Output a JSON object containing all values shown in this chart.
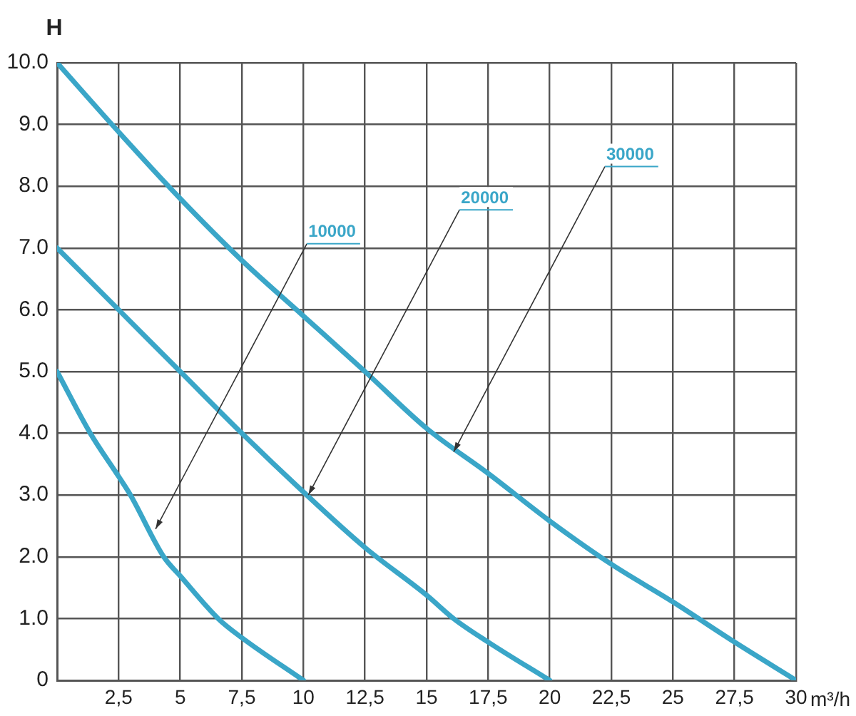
{
  "chart_data": {
    "type": "line",
    "xlabel": "m³/h",
    "ylabel": "H",
    "series": [
      {
        "color": "#3aa6c8",
        "x": [
          0,
          1.35,
          2.5,
          2.98,
          4.33,
          5,
          6.54,
          7.5,
          10
        ],
        "values": [
          5,
          4,
          3.3,
          3,
          2,
          1.69,
          1,
          0.69,
          0
        ]
      },
      {
        "color": "#3aa6c8",
        "x": [
          0,
          2.5,
          5,
          7.5,
          10,
          12.5,
          15,
          16.1,
          17.5,
          20
        ],
        "values": [
          7,
          6,
          5,
          4,
          3.05,
          2.15,
          1.38,
          1,
          0.62,
          0
        ]
      },
      {
        "color": "#3aa6c8",
        "x": [
          0,
          2.5,
          5,
          7.5,
          10,
          12.5,
          15,
          17.5,
          20,
          22.5,
          25,
          27.5,
          30
        ],
        "values": [
          10,
          8.88,
          7.8,
          6.8,
          5.9,
          5,
          4.08,
          3.35,
          2.58,
          1.88,
          1.27,
          0.62,
          0
        ]
      }
    ],
    "xlim": [
      0,
      30
    ],
    "xticks": [
      {
        "value": 0,
        "label": null
      },
      {
        "value": 2.5,
        "label": "2,5"
      },
      5,
      {
        "value": 7.5,
        "label": "7,5"
      },
      10,
      {
        "value": 12.5,
        "label": "12,5"
      },
      15,
      {
        "value": 17.5,
        "label": "17,5"
      },
      20,
      {
        "value": 22.5,
        "label": "22,5"
      },
      25,
      {
        "value": 27.5,
        "label": "27,5"
      },
      30
    ],
    "ylim": [
      0,
      10
    ],
    "yticks": [
      0,
      {
        "value": 1,
        "label": "1.0"
      },
      {
        "value": 2,
        "label": "2.0"
      },
      {
        "value": 3,
        "label": "3.0"
      },
      {
        "value": 4,
        "label": "4.0"
      },
      {
        "value": 5,
        "label": "5.0"
      },
      {
        "value": 6,
        "label": "6.0"
      },
      {
        "value": 7,
        "label": "7.0"
      },
      {
        "value": 8,
        "label": "8.0"
      },
      {
        "value": 9,
        "label": "9.0"
      },
      {
        "value": 10,
        "label": "10.0"
      }
    ],
    "grid": true,
    "legend": false,
    "marker": "none",
    "line_style": "solid",
    "annotations": [
      {
        "text": "10000",
        "x": 4,
        "y": 2.45
      },
      {
        "text": "20000",
        "x": 10.2,
        "y": 3
      },
      {
        "text": "30000",
        "x": 16.1,
        "y": 3.7
      }
    ]
  }
}
